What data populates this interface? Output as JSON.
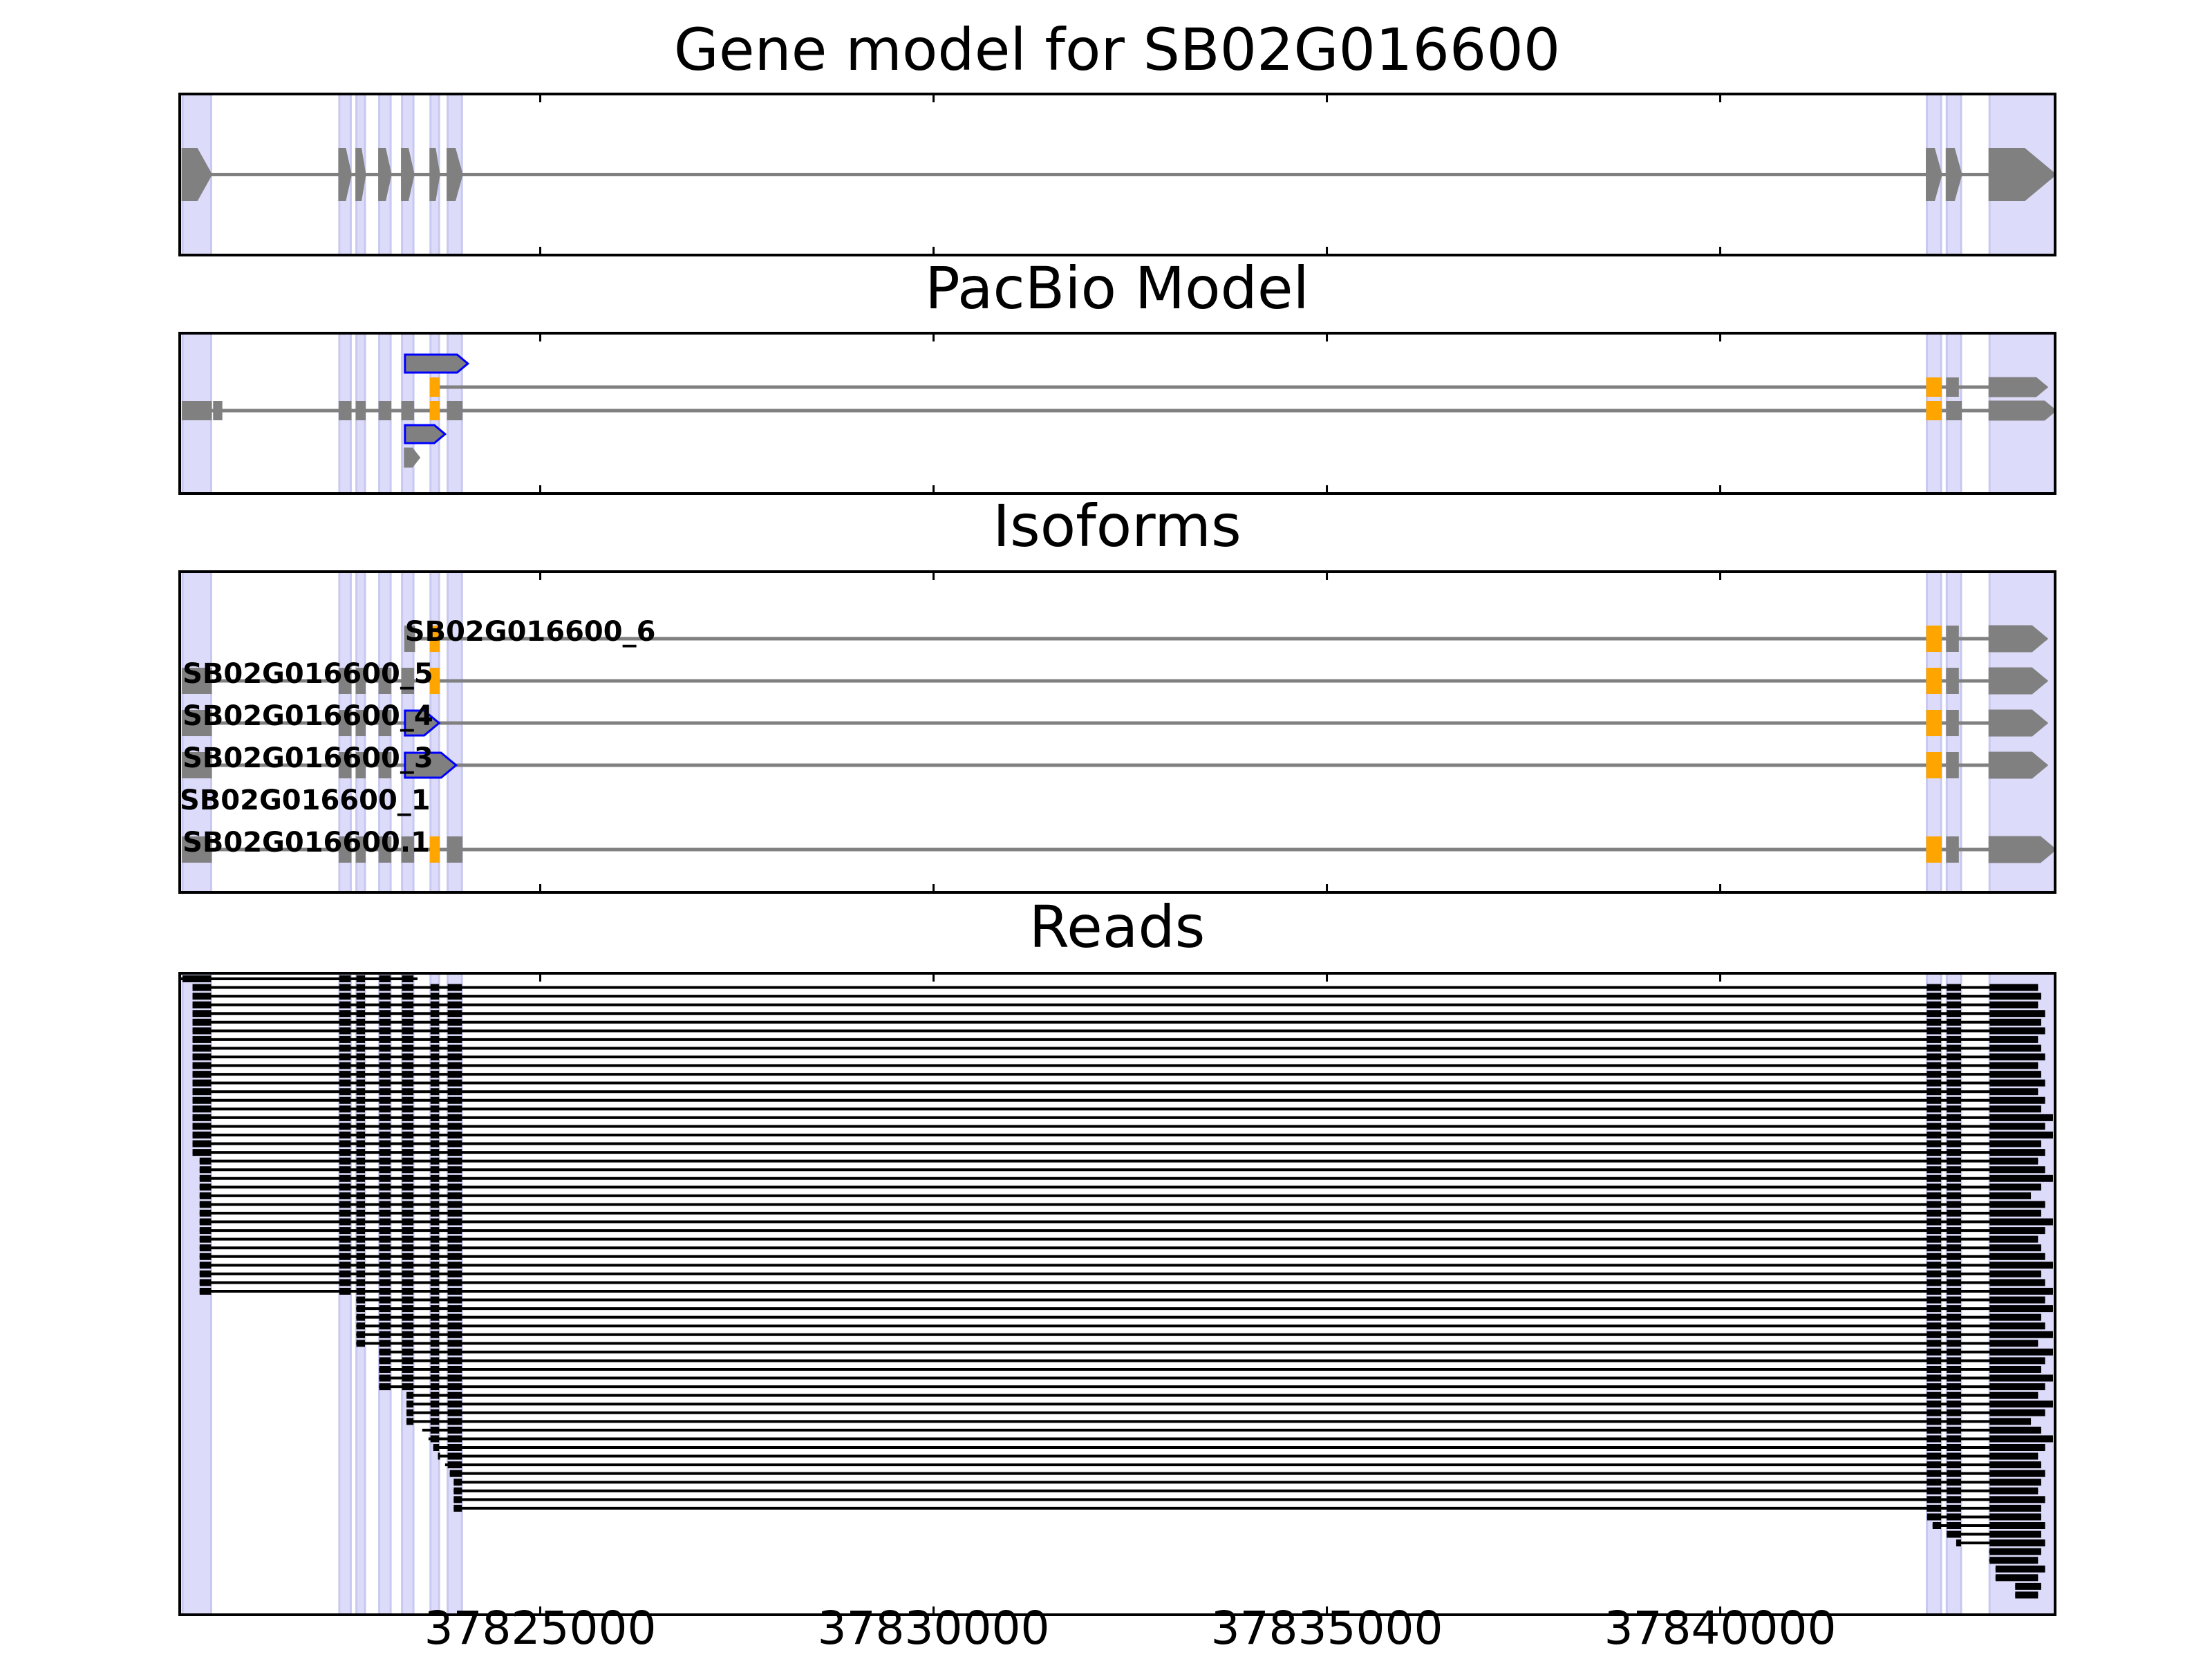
{
  "chart_data": {
    "type": "gene_tracks",
    "title": "Gene model for SB02G016600",
    "pacbio_title": "PacBio Model",
    "isoforms_title": "Isoforms",
    "reads_title": "Reads",
    "xlim": [
      37820417,
      37844257
    ],
    "xticks": [
      37825000,
      37830000,
      37835000,
      37840000
    ],
    "exon_color": "#808080",
    "highlight_color": "#dcdcfa",
    "read_color": "#000000",
    "gene_exons": [
      [
        37820453,
        37820816
      ],
      [
        37822446,
        37822591
      ],
      [
        37822663,
        37822772
      ],
      [
        37822953,
        37823098
      ],
      [
        37823243,
        37823388
      ],
      [
        37823605,
        37823714
      ],
      [
        37823823,
        37824004
      ],
      [
        37842627,
        37842808
      ],
      [
        37842880,
        37843062
      ],
      [
        37843424,
        37844257
      ]
    ],
    "pacbio_rows": [
      [
        [
          37823280,
          37824080,
          "#0000ff"
        ]
      ],
      [
        [
          37823605,
          37823714,
          "#ffa500"
        ],
        [
          37842627,
          37842808,
          "#ffa500"
        ],
        [
          37842880,
          37843025,
          "#808080"
        ],
        [
          37843424,
          37844150,
          "#808080"
        ]
      ],
      [
        [
          37820453,
          37820816,
          "#808080"
        ],
        [
          37820850,
          37820950,
          "#808080"
        ],
        [
          37822446,
          37822591,
          "#808080"
        ],
        [
          37822663,
          37822772,
          "#808080"
        ],
        [
          37822953,
          37823098,
          "#808080"
        ],
        [
          37823243,
          37823388,
          "#808080"
        ],
        [
          37823605,
          37823714,
          "#ffa500"
        ],
        [
          37823823,
          37824004,
          "#808080"
        ],
        [
          37842627,
          37842808,
          "#ffa500"
        ],
        [
          37842880,
          37843062,
          "#808080"
        ],
        [
          37843424,
          37844257,
          "#808080"
        ]
      ],
      [
        [
          37823280,
          37823790,
          "#0000ff"
        ]
      ],
      [
        [
          37823280,
          37823460,
          "#808080"
        ]
      ]
    ],
    "isoforms": [
      {
        "name": "SB02G016600_6",
        "exons": [
          [
            37823280,
            37823400,
            "#808080"
          ],
          [
            37823605,
            37823714,
            "#ffa500"
          ],
          [
            37842627,
            37842808,
            "#ffa500"
          ],
          [
            37842880,
            37843025,
            "#808080"
          ],
          [
            37843424,
            37844150,
            "#808080"
          ]
        ]
      },
      {
        "name": "SB02G016600_5",
        "exons": [
          [
            37820453,
            37820816,
            "#808080"
          ],
          [
            37822446,
            37822591,
            "#808080"
          ],
          [
            37822663,
            37822772,
            "#808080"
          ],
          [
            37822953,
            37823098,
            "#808080"
          ],
          [
            37823243,
            37823388,
            "#808080"
          ],
          [
            37823605,
            37823714,
            "#ffa500"
          ],
          [
            37842627,
            37842808,
            "#ffa500"
          ],
          [
            37842880,
            37843025,
            "#808080"
          ],
          [
            37843424,
            37844150,
            "#808080"
          ]
        ]
      },
      {
        "name": "SB02G016600_4",
        "exons": [
          [
            37820453,
            37820816,
            "#808080"
          ],
          [
            37822446,
            37822591,
            "#808080"
          ],
          [
            37822663,
            37822772,
            "#808080"
          ],
          [
            37822953,
            37823098,
            "#808080"
          ],
          [
            37823280,
            37823714,
            "#0000ff"
          ],
          [
            37842627,
            37842808,
            "#ffa500"
          ],
          [
            37842880,
            37843025,
            "#808080"
          ],
          [
            37843424,
            37844150,
            "#808080"
          ]
        ]
      },
      {
        "name": "SB02G016600_3",
        "exons": [
          [
            37820453,
            37820816,
            "#808080"
          ],
          [
            37822446,
            37822591,
            "#808080"
          ],
          [
            37822663,
            37822772,
            "#808080"
          ],
          [
            37822953,
            37823098,
            "#808080"
          ],
          [
            37823280,
            37823930,
            "#0000ff"
          ],
          [
            37842627,
            37842808,
            "#ffa500"
          ],
          [
            37842880,
            37843025,
            "#808080"
          ],
          [
            37843424,
            37844150,
            "#808080"
          ]
        ]
      },
      {
        "name": "SB02G016600_1",
        "exons": []
      },
      {
        "name": "SB02G016600.1",
        "exons": [
          [
            37820453,
            37820816,
            "#808080"
          ],
          [
            37822446,
            37822591,
            "#808080"
          ],
          [
            37822663,
            37822772,
            "#808080"
          ],
          [
            37822953,
            37823098,
            "#808080"
          ],
          [
            37823243,
            37823388,
            "#808080"
          ],
          [
            37823605,
            37823714,
            "#ffa500"
          ],
          [
            37823823,
            37824004,
            "#808080"
          ],
          [
            37842627,
            37842808,
            "#ffa500"
          ],
          [
            37842880,
            37843025,
            "#808080"
          ],
          [
            37843424,
            37844257,
            "#808080"
          ]
        ]
      }
    ],
    "reads": [
      [
        37820420,
        37823440
      ],
      [
        37820580,
        37844040
      ],
      [
        37820580,
        37844080
      ],
      [
        37820580,
        37844040
      ],
      [
        37820580,
        37844130
      ],
      [
        37820580,
        37844080
      ],
      [
        37820580,
        37844130
      ],
      [
        37820580,
        37844040
      ],
      [
        37820580,
        37844080
      ],
      [
        37820580,
        37844130
      ],
      [
        37820580,
        37844040
      ],
      [
        37820580,
        37844080
      ],
      [
        37820580,
        37844130
      ],
      [
        37820580,
        37844040
      ],
      [
        37820580,
        37844130
      ],
      [
        37820580,
        37844080
      ],
      [
        37820580,
        37844230
      ],
      [
        37820580,
        37844130
      ],
      [
        37820580,
        37844230
      ],
      [
        37820580,
        37844080
      ],
      [
        37820580,
        37844130
      ],
      [
        37820670,
        37844040
      ],
      [
        37820670,
        37844130
      ],
      [
        37820670,
        37844230
      ],
      [
        37820670,
        37844080
      ],
      [
        37820670,
        37843950
      ],
      [
        37820670,
        37844130
      ],
      [
        37820670,
        37844080
      ],
      [
        37820670,
        37844230
      ],
      [
        37820670,
        37844130
      ],
      [
        37820670,
        37844040
      ],
      [
        37820670,
        37844080
      ],
      [
        37820670,
        37844130
      ],
      [
        37820670,
        37844230
      ],
      [
        37820670,
        37844080
      ],
      [
        37820670,
        37844130
      ],
      [
        37820670,
        37844230
      ],
      [
        37822660,
        37844130
      ],
      [
        37822660,
        37844230
      ],
      [
        37822660,
        37844080
      ],
      [
        37822660,
        37844130
      ],
      [
        37822660,
        37844230
      ],
      [
        37822660,
        37844040
      ],
      [
        37822950,
        37844230
      ],
      [
        37822950,
        37844130
      ],
      [
        37822950,
        37844080
      ],
      [
        37822950,
        37844230
      ],
      [
        37822950,
        37844130
      ],
      [
        37823300,
        37844040
      ],
      [
        37823300,
        37844230
      ],
      [
        37823300,
        37844130
      ],
      [
        37823300,
        37843950
      ],
      [
        37823500,
        37844080
      ],
      [
        37823580,
        37844230
      ],
      [
        37823640,
        37844130
      ],
      [
        37823700,
        37844040
      ],
      [
        37823790,
        37844080
      ],
      [
        37823850,
        37844130
      ],
      [
        37823900,
        37844080
      ],
      [
        37823900,
        37844040
      ],
      [
        37823900,
        37844130
      ],
      [
        37823900,
        37844080
      ],
      [
        37842630,
        37844080
      ],
      [
        37842700,
        37844130
      ],
      [
        37842880,
        37844080
      ],
      [
        37843000,
        37844130
      ],
      [
        37843420,
        37844080
      ],
      [
        37843420,
        37844040
      ],
      [
        37843500,
        37844130
      ],
      [
        37843500,
        37844040
      ],
      [
        37843750,
        37844080
      ],
      [
        37843750,
        37844040
      ]
    ]
  }
}
